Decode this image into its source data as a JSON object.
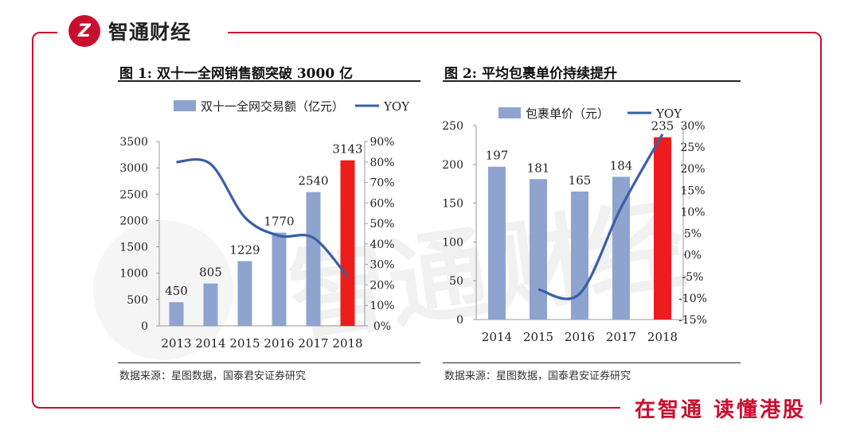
{
  "brand": {
    "name": "智通财经",
    "logo_glyph": "Z",
    "slogan": "在智通 读懂港股",
    "accent": "#c8102e"
  },
  "watermark_text": "智通财经",
  "chart_data": [
    {
      "type": "bar",
      "title": "图 1: 双十一全网销售额突破 3000 亿",
      "categories": [
        "2013",
        "2014",
        "2015",
        "2016",
        "2017",
        "2018"
      ],
      "series": [
        {
          "name": "双十一全网交易额（亿元）",
          "values": [
            450,
            805,
            1229,
            1770,
            2540,
            3143
          ],
          "axis": "left",
          "color": "#8ea4cf",
          "highlight_last_color": "#ee1c1c"
        },
        {
          "name": "YOY",
          "type": "line",
          "values": [
            0.8,
            0.79,
            0.53,
            0.44,
            0.43,
            0.24
          ],
          "axis": "right",
          "color": "#3a5fa8"
        }
      ],
      "data_labels": [
        "450",
        "805",
        "1229",
        "1770",
        "2540",
        "3143"
      ],
      "ylim": [
        0,
        3500
      ],
      "yticks": [
        0,
        500,
        1000,
        1500,
        2000,
        2500,
        3000,
        3500
      ],
      "y2lim": [
        0,
        0.9
      ],
      "y2ticks": [
        0,
        0.1,
        0.2,
        0.3,
        0.4,
        0.5,
        0.6,
        0.7,
        0.8,
        0.9
      ],
      "y2ticklabels": [
        "0%",
        "10%",
        "20%",
        "30%",
        "40%",
        "50%",
        "60%",
        "70%",
        "80%",
        "90%"
      ],
      "legend": "top",
      "source": "数据来源：星图数据，国泰君安证券研究"
    },
    {
      "type": "bar",
      "title": "图 2:   平均包裹单价持续提升",
      "categories": [
        "2014",
        "2015",
        "2016",
        "2017",
        "2018"
      ],
      "series": [
        {
          "name": "包裹单价（元）",
          "values": [
            197,
            181,
            165,
            184,
            235
          ],
          "axis": "left",
          "color": "#8ea4cf",
          "highlight_last_color": "#ee1c1c"
        },
        {
          "name": "YOY",
          "type": "line",
          "x": [
            "2015",
            "2016",
            "2017",
            "2018"
          ],
          "values": [
            -0.08,
            -0.09,
            0.11,
            0.28
          ],
          "axis": "right",
          "color": "#3a5fa8"
        }
      ],
      "data_labels": [
        "197",
        "181",
        "165",
        "184",
        "235"
      ],
      "ylim": [
        0,
        250
      ],
      "yticks": [
        0,
        50,
        100,
        150,
        200,
        250
      ],
      "y2lim": [
        -0.15,
        0.3
      ],
      "y2ticks": [
        -0.15,
        -0.1,
        -0.05,
        0,
        0.05,
        0.1,
        0.15,
        0.2,
        0.25,
        0.3
      ],
      "y2ticklabels": [
        "-15%",
        "-10%",
        "-5%",
        "0%",
        "5%",
        "10%",
        "15%",
        "20%",
        "25%",
        "30%"
      ],
      "legend": "top",
      "source": "数据来源：星图数据，国泰君安证券研究"
    }
  ]
}
